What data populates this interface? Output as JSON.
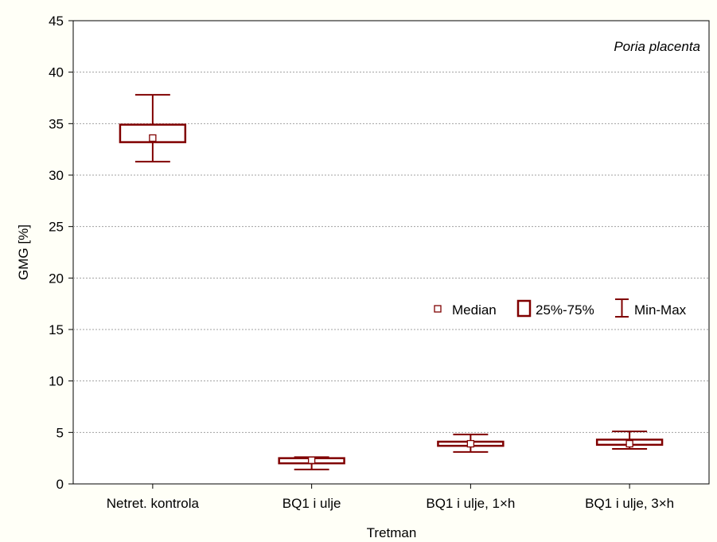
{
  "chart_data": {
    "type": "boxplot",
    "xlabel": "Tretman",
    "ylabel": "GMG [%]",
    "ylim": [
      0,
      45
    ],
    "yticks": [
      0,
      5,
      10,
      15,
      20,
      25,
      30,
      35,
      40,
      45
    ],
    "grid": "horizontal dashed",
    "annotation": "Poria placenta",
    "legend": {
      "position": "right",
      "entries": [
        {
          "label": "Median",
          "symbol": "square-marker"
        },
        {
          "label": "25%-75%",
          "symbol": "box"
        },
        {
          "label": "Min-Max",
          "symbol": "whisker"
        }
      ]
    },
    "categories": [
      "Netret. kontrola",
      "BQ1 i ulje",
      "BQ1 i ulje, 1×h",
      "BQ1 i ulje, 3×h"
    ],
    "boxes": [
      {
        "category": "Netret. kontrola",
        "min": 31.3,
        "q1": 33.2,
        "median": 33.6,
        "q3": 34.9,
        "max": 37.8
      },
      {
        "category": "BQ1 i ulje",
        "min": 1.4,
        "q1": 2.0,
        "median": 2.3,
        "q3": 2.5,
        "max": 2.6
      },
      {
        "category": "BQ1 i ulje, 1×h",
        "min": 3.1,
        "q1": 3.7,
        "median": 3.9,
        "q3": 4.1,
        "max": 4.8
      },
      {
        "category": "BQ1 i ulje, 3×h",
        "min": 3.4,
        "q1": 3.8,
        "median": 3.9,
        "q3": 4.3,
        "max": 5.1
      }
    ],
    "colors": {
      "box": "#800000",
      "background": "#fffff7",
      "plot_background": "#ffffff",
      "grid": "#a0a0a0"
    }
  }
}
